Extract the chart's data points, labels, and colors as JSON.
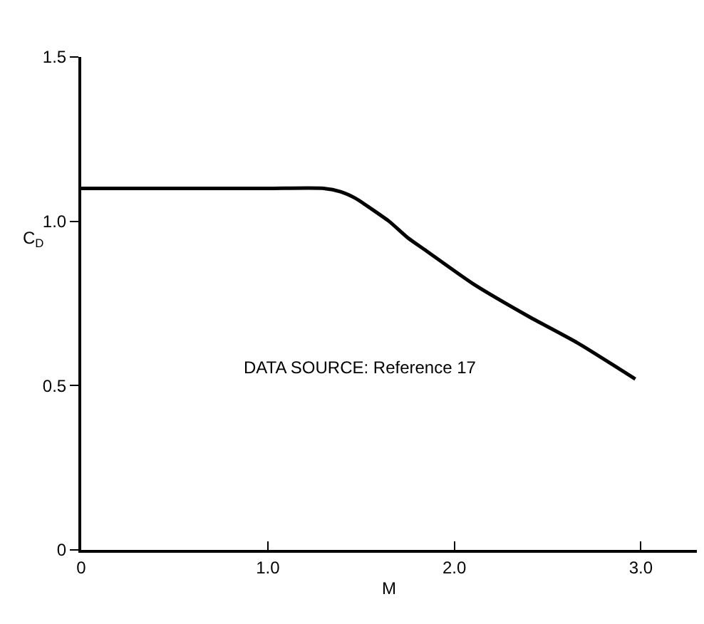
{
  "chart_data": {
    "type": "line",
    "xlabel": "M",
    "ylabel": "C$_{D}$",
    "annotations": [
      "DATA SOURCE: Reference 17"
    ],
    "x": [
      0,
      0.5,
      1.0,
      1.3,
      1.39,
      1.47,
      1.55,
      1.65,
      1.75,
      1.85,
      2.1,
      2.4,
      2.66,
      2.97
    ],
    "series": [
      {
        "color": "#000000",
        "values": [
          1.1,
          1.1,
          1.1,
          1.1,
          1.09,
          1.07,
          1.04,
          1.0,
          0.95,
          0.91,
          0.81,
          0.71,
          0.63,
          0.52
        ]
      }
    ],
    "xlim": [
      0,
      3.3
    ],
    "xticks": [
      0,
      {
        "value": 1,
        "label": "1.0"
      },
      {
        "value": 2,
        "label": "2.0"
      },
      {
        "value": 3,
        "label": "3.0"
      }
    ],
    "ylim": [
      0,
      1.5
    ],
    "yticks": [
      0,
      0.5,
      {
        "value": 1,
        "label": "1.0"
      },
      1.5
    ],
    "grid": false,
    "marker": "none",
    "line_style": "solid"
  }
}
